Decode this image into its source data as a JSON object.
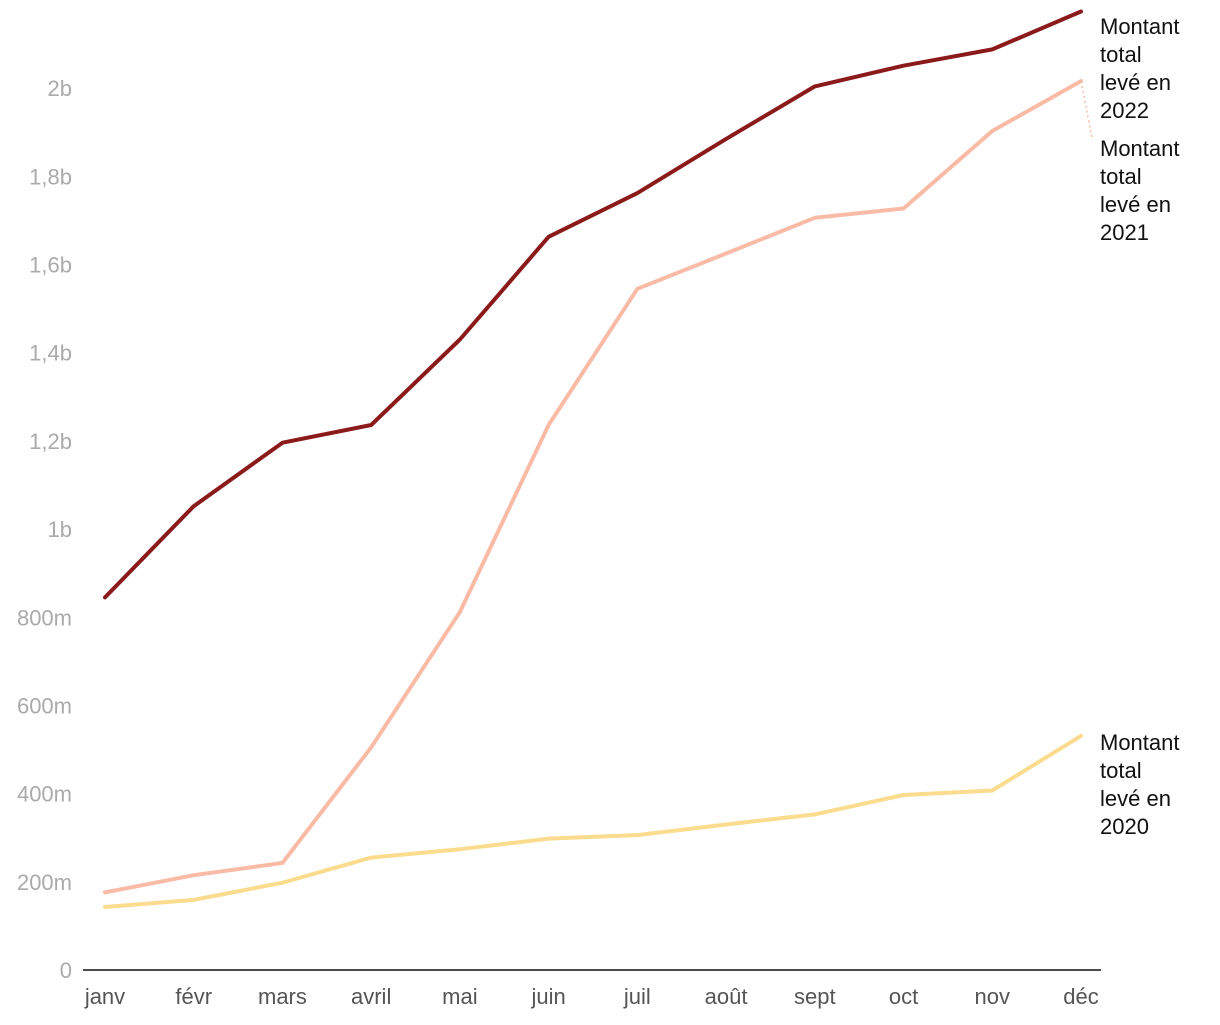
{
  "chart_data": {
    "type": "line",
    "title": "",
    "xlabel": "",
    "ylabel": "",
    "categories": [
      "janv",
      "févr",
      "mars",
      "avril",
      "mai",
      "juin",
      "juil",
      "août",
      "sept",
      "oct",
      "nov",
      "déc"
    ],
    "ylim": [
      0,
      2200000000
    ],
    "yticks": [
      {
        "value": 0,
        "label": "0"
      },
      {
        "value": 200000000,
        "label": "200m"
      },
      {
        "value": 400000000,
        "label": "400m"
      },
      {
        "value": 600000000,
        "label": "600m"
      },
      {
        "value": 800000000,
        "label": "800m"
      },
      {
        "value": 1000000000,
        "label": "1b"
      },
      {
        "value": 1200000000,
        "label": "1,2b"
      },
      {
        "value": 1400000000,
        "label": "1,4b"
      },
      {
        "value": 1600000000,
        "label": "1,6b"
      },
      {
        "value": 1800000000,
        "label": "1,8b"
      },
      {
        "value": 2000000000,
        "label": "2b"
      }
    ],
    "grid": false,
    "legend": "inline labels at line ends (right)",
    "series": [
      {
        "name": "Montant total levé en 2022",
        "label_lines": [
          "Montant",
          "total",
          "levé en",
          "2022"
        ],
        "color": "#8b1a1a",
        "values": [
          845000000,
          1052000000,
          1196000000,
          1236000000,
          1430000000,
          1663000000,
          1762000000,
          1885000000,
          2004000000,
          2051000000,
          2088000000,
          2174000000
        ]
      },
      {
        "name": "Montant total levé en 2021",
        "label_lines": [
          "Montant",
          "total",
          "levé en",
          "2021"
        ],
        "color": "#f9bba6",
        "values": [
          176000000,
          215000000,
          243000000,
          505000000,
          812000000,
          1236000000,
          1545000000,
          1625000000,
          1706000000,
          1727000000,
          1903000000,
          2016000000
        ]
      },
      {
        "name": "Montant total levé en 2020",
        "label_lines": [
          "Montant",
          "total",
          "levé en",
          "2020"
        ],
        "color": "#fbdc8e",
        "values": [
          143000000,
          159000000,
          198000000,
          255000000,
          274000000,
          298000000,
          306000000,
          330000000,
          353000000,
          397000000,
          407000000,
          531000000
        ]
      }
    ]
  }
}
